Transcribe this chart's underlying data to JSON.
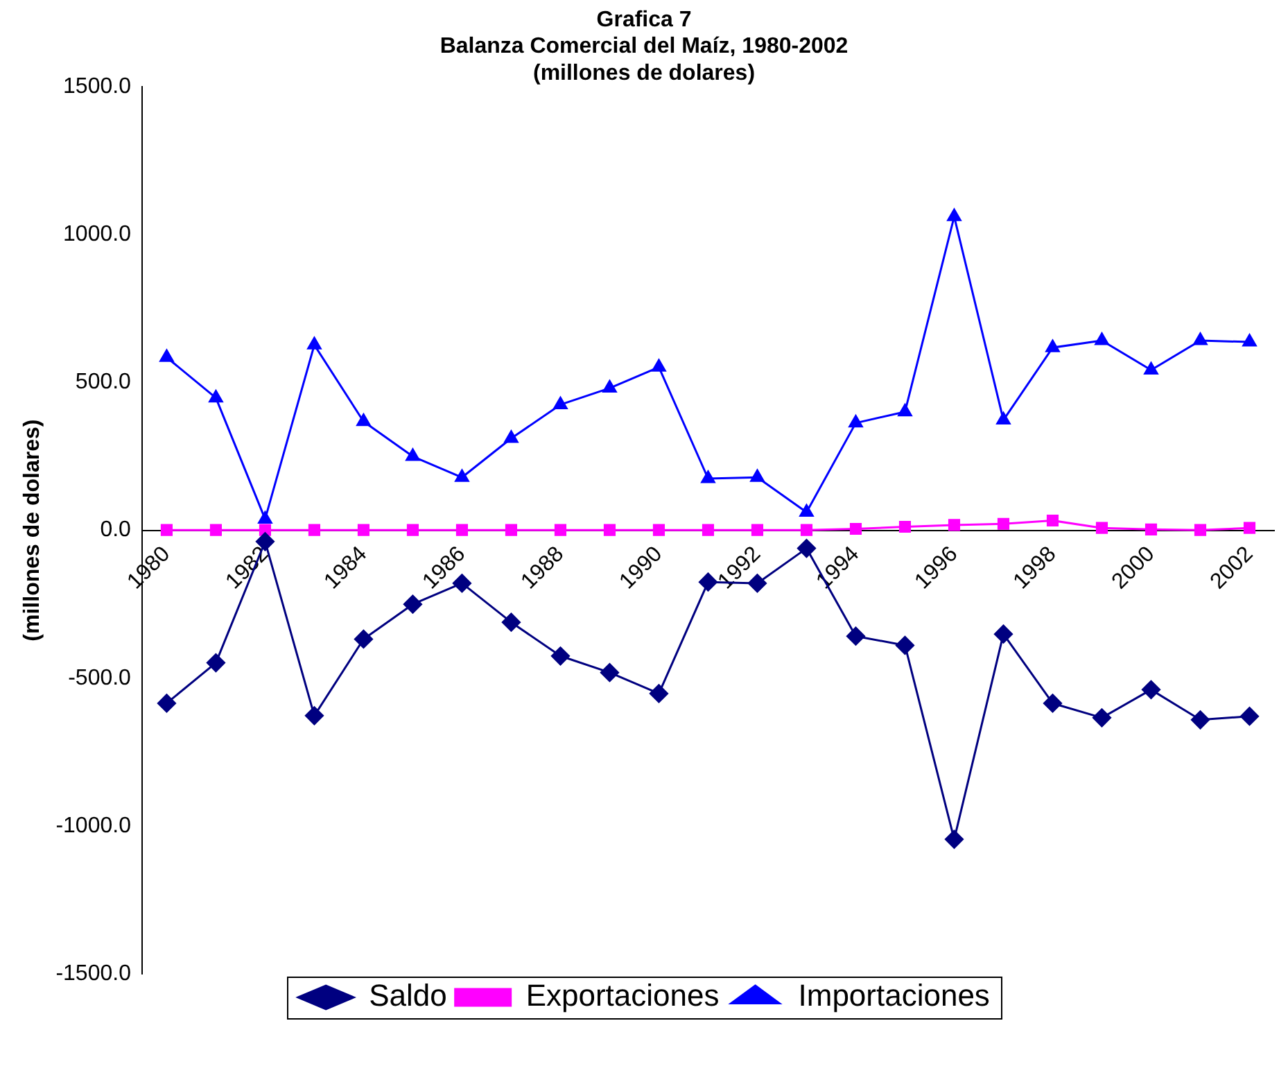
{
  "chart_data": {
    "type": "line",
    "title": "Grafica 7\nBalanza Comercial del Maíz, 1980-2002\n(millones de dolares)",
    "ylabel": "(millones de dolares)",
    "categories": [
      "1980",
      null,
      "1982",
      null,
      "1984",
      null,
      "1986",
      null,
      "1988",
      null,
      "1990",
      null,
      "1992",
      null,
      "1994",
      null,
      "1996",
      null,
      "1998",
      null,
      "2000",
      null,
      "2002"
    ],
    "series": [
      {
        "name": "Saldo",
        "color": "#000080",
        "marker": "diamond",
        "values": [
          -585,
          -448,
          -38,
          -627,
          -368,
          -250,
          -179,
          -311,
          -425,
          -481,
          -552,
          -175,
          -179,
          -61,
          -358,
          -389,
          -1045,
          -351,
          -585,
          -634,
          -539,
          -641,
          -629
        ]
      },
      {
        "name": "Exportaciones",
        "color": "#ff00ff",
        "marker": "square",
        "values": [
          1,
          1,
          1,
          1,
          1,
          1,
          1,
          1,
          1,
          1,
          1,
          1,
          1,
          1,
          5,
          12,
          18,
          22,
          33,
          8,
          3,
          1,
          8
        ]
      },
      {
        "name": "Importaciones",
        "color": "#0000ff",
        "marker": "triangle",
        "values": [
          585,
          448,
          38,
          627,
          368,
          250,
          179,
          311,
          425,
          481,
          552,
          175,
          179,
          61,
          363,
          401,
          1061,
          373,
          618,
          642,
          542,
          642,
          637
        ]
      }
    ],
    "ylim": [
      -1500,
      1500
    ],
    "yticks": [
      {
        "value": -1500,
        "label": "-1500.0"
      },
      {
        "value": -1000,
        "label": "-1000.0"
      },
      {
        "value": -500,
        "label": "-500.0"
      },
      {
        "value": 0,
        "label": "0.0"
      },
      {
        "value": 500,
        "label": "500.0"
      },
      {
        "value": 1000,
        "label": "1000.0"
      },
      {
        "value": 1500,
        "label": "1500.0"
      }
    ],
    "grid": false,
    "legend": "bottom",
    "line_style": "solid"
  }
}
